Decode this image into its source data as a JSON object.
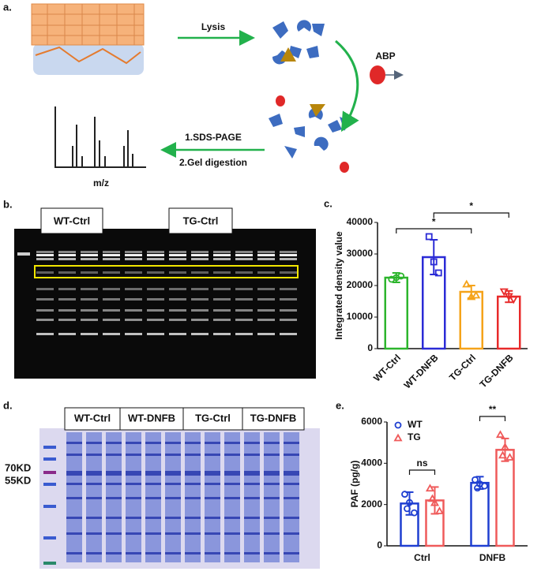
{
  "panels": {
    "a": {
      "label": "a.",
      "steps": {
        "lysis": "Lysis",
        "abp": "ABP",
        "sds": "1.SDS-PAGE",
        "digest": "2.Gel digestion",
        "axis": "m/z"
      }
    },
    "b": {
      "label": "b.",
      "groups": [
        "WT-Ctrl",
        "TG-Ctrl"
      ]
    },
    "c": {
      "label": "c."
    },
    "d": {
      "label": "d.",
      "groups": [
        "WT-Ctrl",
        "WT-DNFB",
        "TG-Ctrl",
        "TG-DNFB"
      ],
      "markers": [
        "70KD",
        "55KD"
      ]
    },
    "e": {
      "label": "e."
    }
  },
  "chart_data": [
    {
      "type": "bar",
      "categories": [
        "WT-Ctrl",
        "WT-DNFB",
        "TG-Ctrl",
        "TG-DNFB"
      ],
      "ylabel": "Integrated density value",
      "values": [
        22500,
        29000,
        18000,
        16500
      ],
      "errors": [
        1500,
        5500,
        2000,
        1800
      ],
      "points": [
        [
          22000,
          23000,
          22500
        ],
        [
          35500,
          24000,
          27500
        ],
        [
          20500,
          17000,
          16500
        ],
        [
          18000,
          15500,
          16500
        ]
      ],
      "colors": [
        "#2db52d",
        "#2b2bd6",
        "#f5a31a",
        "#e82a2a"
      ],
      "markers": [
        "circle",
        "square",
        "triangle",
        "triangle-down"
      ],
      "ylim": [
        0,
        40000
      ],
      "yticks": [
        0,
        10000,
        20000,
        30000,
        40000
      ],
      "annotations": [
        "*",
        "*"
      ]
    },
    {
      "type": "bar",
      "categories": [
        "Ctrl",
        "DNFB"
      ],
      "ylabel": "PAF (pg/g)",
      "series": [
        {
          "name": "WT",
          "color": "#1f3fd1",
          "marker": "circle",
          "values": [
            2050,
            3050
          ],
          "errors": [
            550,
            300
          ],
          "points": [
            [
              2500,
              1600,
              2100,
              1800
            ],
            [
              3200,
              2900,
              3000,
              2800
            ]
          ]
        },
        {
          "name": "TG",
          "color": "#ef5a5a",
          "marker": "triangle",
          "values": [
            2200,
            4650
          ],
          "errors": [
            650,
            550
          ],
          "points": [
            [
              2800,
              1700,
              2100,
              2300
            ],
            [
              5400,
              4300,
              4800,
              4400
            ]
          ]
        }
      ],
      "ylim": [
        0,
        6000
      ],
      "yticks": [
        0,
        2000,
        4000,
        6000
      ],
      "legend": "upper left",
      "annotations": [
        "ns",
        "**"
      ]
    }
  ]
}
